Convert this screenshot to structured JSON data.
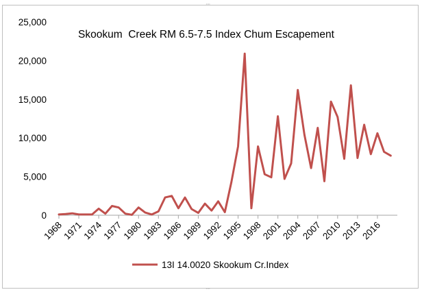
{
  "chart_data": {
    "type": "line",
    "title": "Skookum  Creek RM 6.5-7.5 Index Chum Escapement",
    "xlabel": "",
    "ylabel": "",
    "ylim": [
      0,
      25000
    ],
    "yticks": [
      0,
      5000,
      10000,
      15000,
      20000,
      25000
    ],
    "ytick_labels": [
      "0",
      "5,000",
      "10,000",
      "15,000",
      "20,000",
      "25,000"
    ],
    "xlim": [
      1968,
      2019
    ],
    "xticks": [
      1968,
      1971,
      1974,
      1977,
      1980,
      1983,
      1986,
      1989,
      1992,
      1995,
      1998,
      2001,
      2004,
      2007,
      2010,
      2013,
      2016
    ],
    "xtick_labels": [
      "1968",
      "1971",
      "1974",
      "1977",
      "1980",
      "1983",
      "1986",
      "1989",
      "1992",
      "1995",
      "1998",
      "2001",
      "2004",
      "2007",
      "2010",
      "2013",
      "2016"
    ],
    "grid": false,
    "legend_position": "bottom",
    "series": [
      {
        "name": "13I 14.0020 Skookum Cr.Index",
        "color": "#c0504d",
        "x": [
          1968,
          1969,
          1970,
          1971,
          1972,
          1973,
          1974,
          1975,
          1976,
          1977,
          1978,
          1979,
          1980,
          1981,
          1982,
          1983,
          1984,
          1985,
          1986,
          1987,
          1988,
          1989,
          1990,
          1991,
          1992,
          1993,
          1994,
          1995,
          1996,
          1997,
          1998,
          1999,
          2000,
          2001,
          2002,
          2003,
          2004,
          2005,
          2006,
          2007,
          2008,
          2009,
          2010,
          2011,
          2012,
          2013,
          2014,
          2015,
          2016,
          2017,
          2018,
          2019
        ],
        "values": [
          100,
          150,
          250,
          100,
          100,
          100,
          850,
          200,
          1200,
          1000,
          200,
          50,
          1000,
          350,
          100,
          500,
          2300,
          2500,
          900,
          2300,
          800,
          300,
          1500,
          600,
          1800,
          400,
          4300,
          8900,
          20900,
          900,
          8900,
          5300,
          4900,
          12800,
          4700,
          6700,
          16200,
          10400,
          6100,
          11300,
          4400,
          14700,
          12700,
          7300,
          16800,
          7400,
          11700,
          7900,
          10600,
          8200,
          7700,
          null
        ]
      }
    ]
  }
}
